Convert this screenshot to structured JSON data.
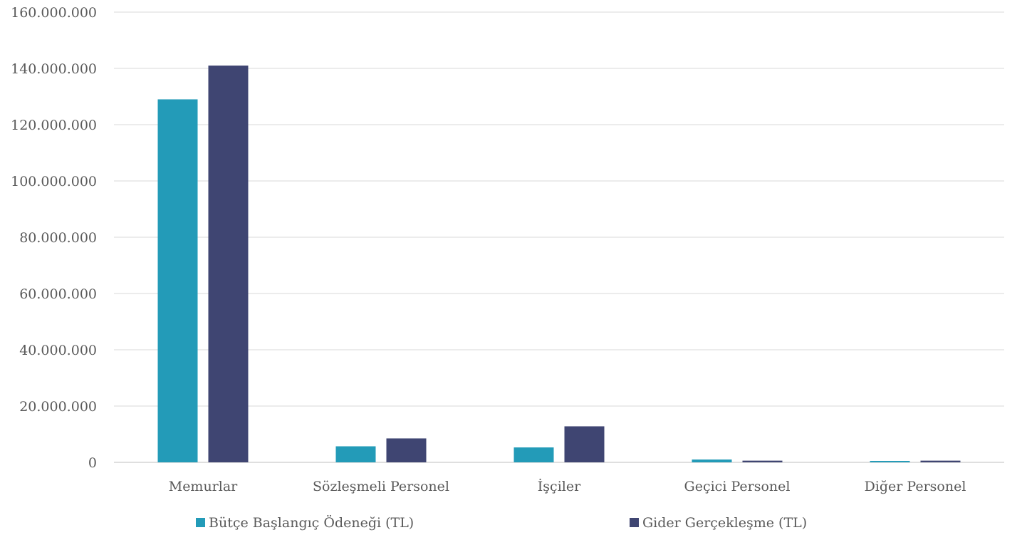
{
  "chart_data": {
    "type": "bar",
    "title": "",
    "xlabel": "",
    "ylabel": "",
    "categories": [
      "Memurlar",
      "Sözleşmeli Personel",
      "İşçiler",
      "Geçici Personel",
      "Diğer Personel"
    ],
    "series": [
      {
        "name": "Bütçe Başlangıç Ödeneği (TL)",
        "color": "#239bb8",
        "values": [
          129000000,
          5700000,
          5300000,
          1000000,
          500000
        ]
      },
      {
        "name": "Gider Gerçekleşme (TL)",
        "color": "#3f4572",
        "values": [
          141000000,
          8500000,
          12800000,
          600000,
          600000
        ]
      }
    ],
    "ylim": [
      0,
      160000000
    ],
    "y_ticks": [
      0,
      20000000,
      40000000,
      60000000,
      80000000,
      100000000,
      120000000,
      140000000,
      160000000
    ],
    "y_tick_labels": [
      "0",
      "20.000.000",
      "40.000.000",
      "60.000.000",
      "80.000.000",
      "100.000.000",
      "120.000.000",
      "140.000.000",
      "160.000.000"
    ],
    "grid": true,
    "legend_position": "bottom"
  }
}
